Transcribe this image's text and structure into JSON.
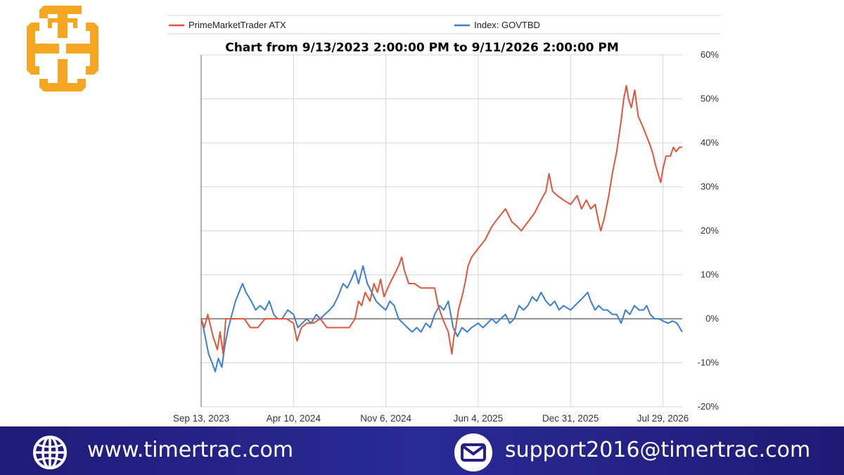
{
  "brand": {
    "logo_icon": "cross-frame-logo-icon",
    "logo_color": "#f5a623"
  },
  "colors": {
    "series_primary": "#e0563a",
    "series_index": "#3a7fd5",
    "grid": "#d6d6d6",
    "axis": "#666666",
    "footer_bg": "#23208a"
  },
  "chart_data": {
    "type": "line",
    "title": "Chart from 9/13/2023 2:00:00 PM to 9/11/2026 2:00:00 PM",
    "x_axis": {
      "type": "date",
      "range": [
        "2023-09-13",
        "2026-09-11"
      ],
      "tick_labels": [
        "Sep 13, 2023",
        "Apr 10, 2024",
        "Nov 6, 2024",
        "Jun 4, 2025",
        "Dec 31, 2025",
        "Jul 29, 2026"
      ],
      "tick_dates": [
        "2023-09-13",
        "2024-04-10",
        "2024-11-06",
        "2025-06-04",
        "2025-12-31",
        "2026-07-29"
      ]
    },
    "y_axis": {
      "range": [
        -20,
        60
      ],
      "unit": "%",
      "side": "right",
      "tick_labels": [
        "60%",
        "50%",
        "40%",
        "30%",
        "20%",
        "10%",
        "0%",
        "-10%",
        "-20%"
      ],
      "tick_values": [
        60,
        50,
        40,
        30,
        20,
        10,
        0,
        -10,
        -20
      ]
    },
    "grid": true,
    "legend": "top",
    "series": [
      {
        "name": "PrimeMarketTrader ATX",
        "color": "#e0563a",
        "points": [
          [
            "2023-09-13",
            0
          ],
          [
            "2023-09-20",
            -2
          ],
          [
            "2023-09-28",
            1
          ],
          [
            "2023-10-10",
            -4
          ],
          [
            "2023-10-20",
            -7
          ],
          [
            "2023-10-26",
            -3
          ],
          [
            "2023-11-02",
            -8
          ],
          [
            "2023-11-08",
            0
          ],
          [
            "2023-11-20",
            0
          ],
          [
            "2023-12-05",
            0
          ],
          [
            "2023-12-20",
            0
          ],
          [
            "2024-01-03",
            -2
          ],
          [
            "2024-01-20",
            -2
          ],
          [
            "2024-02-05",
            0
          ],
          [
            "2024-02-25",
            0
          ],
          [
            "2024-03-10",
            0
          ],
          [
            "2024-03-25",
            0
          ],
          [
            "2024-04-10",
            -1
          ],
          [
            "2024-04-18",
            -5
          ],
          [
            "2024-04-28",
            -2
          ],
          [
            "2024-05-10",
            -1
          ],
          [
            "2024-05-25",
            -1
          ],
          [
            "2024-06-10",
            0
          ],
          [
            "2024-06-25",
            -2
          ],
          [
            "2024-07-15",
            -2
          ],
          [
            "2024-08-01",
            -2
          ],
          [
            "2024-08-15",
            -2
          ],
          [
            "2024-08-28",
            0
          ],
          [
            "2024-09-05",
            4
          ],
          [
            "2024-09-12",
            3
          ],
          [
            "2024-09-20",
            6
          ],
          [
            "2024-10-01",
            4
          ],
          [
            "2024-10-10",
            8
          ],
          [
            "2024-10-18",
            6
          ],
          [
            "2024-10-25",
            9
          ],
          [
            "2024-11-02",
            5
          ],
          [
            "2024-11-06",
            6
          ],
          [
            "2024-11-15",
            8
          ],
          [
            "2024-11-25",
            10
          ],
          [
            "2024-12-05",
            12
          ],
          [
            "2024-12-12",
            14
          ],
          [
            "2024-12-18",
            11
          ],
          [
            "2024-12-28",
            8
          ],
          [
            "2025-01-10",
            8
          ],
          [
            "2025-01-25",
            7
          ],
          [
            "2025-02-10",
            7
          ],
          [
            "2025-02-25",
            7
          ],
          [
            "2025-03-05",
            3
          ],
          [
            "2025-03-15",
            0
          ],
          [
            "2025-03-28",
            -3
          ],
          [
            "2025-04-05",
            -8
          ],
          [
            "2025-04-10",
            -4
          ],
          [
            "2025-04-14",
            -2
          ],
          [
            "2025-04-20",
            2
          ],
          [
            "2025-04-28",
            5
          ],
          [
            "2025-05-05",
            8
          ],
          [
            "2025-05-12",
            12
          ],
          [
            "2025-05-20",
            14
          ],
          [
            "2025-06-04",
            16
          ],
          [
            "2025-06-20",
            18
          ],
          [
            "2025-07-05",
            21
          ],
          [
            "2025-07-20",
            23
          ],
          [
            "2025-08-05",
            25
          ],
          [
            "2025-08-20",
            22
          ],
          [
            "2025-09-01",
            21
          ],
          [
            "2025-09-10",
            20
          ],
          [
            "2025-09-25",
            22
          ],
          [
            "2025-10-10",
            24
          ],
          [
            "2025-10-25",
            27
          ],
          [
            "2025-11-05",
            29
          ],
          [
            "2025-11-12",
            33
          ],
          [
            "2025-11-20",
            29
          ],
          [
            "2025-12-01",
            28
          ],
          [
            "2025-12-15",
            27
          ],
          [
            "2025-12-31",
            26
          ],
          [
            "2026-01-15",
            28
          ],
          [
            "2026-01-25",
            25
          ],
          [
            "2026-02-05",
            27
          ],
          [
            "2026-02-15",
            25
          ],
          [
            "2026-02-25",
            26
          ],
          [
            "2026-03-05",
            22
          ],
          [
            "2026-03-10",
            20
          ],
          [
            "2026-03-18",
            23
          ],
          [
            "2026-03-28",
            28
          ],
          [
            "2026-04-05",
            33
          ],
          [
            "2026-04-15",
            38
          ],
          [
            "2026-04-25",
            45
          ],
          [
            "2026-05-01",
            50
          ],
          [
            "2026-05-07",
            53
          ],
          [
            "2026-05-12",
            50
          ],
          [
            "2026-05-18",
            48
          ],
          [
            "2026-05-26",
            52
          ],
          [
            "2026-06-03",
            46
          ],
          [
            "2026-06-12",
            44
          ],
          [
            "2026-06-20",
            42
          ],
          [
            "2026-06-28",
            40
          ],
          [
            "2026-07-05",
            38
          ],
          [
            "2026-07-12",
            35
          ],
          [
            "2026-07-18",
            33
          ],
          [
            "2026-07-24",
            31
          ],
          [
            "2026-07-29",
            34
          ],
          [
            "2026-08-05",
            37
          ],
          [
            "2026-08-15",
            37
          ],
          [
            "2026-08-22",
            39
          ],
          [
            "2026-08-28",
            38
          ],
          [
            "2026-09-05",
            39
          ],
          [
            "2026-09-11",
            39
          ]
        ]
      },
      {
        "name": "Index: GOVTBD",
        "color": "#3a7fd5",
        "points": [
          [
            "2023-09-13",
            0
          ],
          [
            "2023-09-18",
            -2
          ],
          [
            "2023-09-24",
            -5
          ],
          [
            "2023-09-30",
            -8
          ],
          [
            "2023-10-08",
            -10
          ],
          [
            "2023-10-15",
            -12
          ],
          [
            "2023-10-22",
            -9
          ],
          [
            "2023-10-30",
            -11
          ],
          [
            "2023-11-06",
            -6
          ],
          [
            "2023-11-14",
            -2
          ],
          [
            "2023-11-22",
            1
          ],
          [
            "2023-11-30",
            4
          ],
          [
            "2023-12-08",
            6
          ],
          [
            "2023-12-16",
            8
          ],
          [
            "2023-12-24",
            6
          ],
          [
            "2024-01-05",
            4
          ],
          [
            "2024-01-15",
            2
          ],
          [
            "2024-01-25",
            3
          ],
          [
            "2024-02-05",
            2
          ],
          [
            "2024-02-15",
            4
          ],
          [
            "2024-02-25",
            1
          ],
          [
            "2024-03-05",
            0
          ],
          [
            "2024-03-15",
            0
          ],
          [
            "2024-03-28",
            2
          ],
          [
            "2024-04-10",
            1
          ],
          [
            "2024-04-20",
            -2
          ],
          [
            "2024-04-30",
            -1
          ],
          [
            "2024-05-10",
            0
          ],
          [
            "2024-05-20",
            -1
          ],
          [
            "2024-06-01",
            1
          ],
          [
            "2024-06-10",
            0
          ],
          [
            "2024-06-20",
            1
          ],
          [
            "2024-07-01",
            2
          ],
          [
            "2024-07-10",
            3
          ],
          [
            "2024-07-20",
            5
          ],
          [
            "2024-08-01",
            8
          ],
          [
            "2024-08-10",
            7
          ],
          [
            "2024-08-20",
            9
          ],
          [
            "2024-08-28",
            11
          ],
          [
            "2024-09-05",
            8
          ],
          [
            "2024-09-15",
            12
          ],
          [
            "2024-09-25",
            8
          ],
          [
            "2024-10-05",
            6
          ],
          [
            "2024-10-15",
            4
          ],
          [
            "2024-10-25",
            3
          ],
          [
            "2024-11-06",
            2
          ],
          [
            "2024-11-15",
            4
          ],
          [
            "2024-11-25",
            3
          ],
          [
            "2024-12-05",
            0
          ],
          [
            "2024-12-15",
            -1
          ],
          [
            "2024-12-25",
            -2
          ],
          [
            "2025-01-05",
            -3
          ],
          [
            "2025-01-15",
            -2
          ],
          [
            "2025-01-25",
            -3
          ],
          [
            "2025-02-05",
            -1
          ],
          [
            "2025-02-15",
            -2
          ],
          [
            "2025-02-25",
            1
          ],
          [
            "2025-03-08",
            3
          ],
          [
            "2025-03-18",
            2
          ],
          [
            "2025-03-28",
            4
          ],
          [
            "2025-04-08",
            -2
          ],
          [
            "2025-04-18",
            -4
          ],
          [
            "2025-04-28",
            -2
          ],
          [
            "2025-05-10",
            -3
          ],
          [
            "2025-05-20",
            -2
          ],
          [
            "2025-06-04",
            -1
          ],
          [
            "2025-06-15",
            -2
          ],
          [
            "2025-06-25",
            -1
          ],
          [
            "2025-07-05",
            0
          ],
          [
            "2025-07-15",
            -1
          ],
          [
            "2025-07-25",
            0
          ],
          [
            "2025-08-05",
            1
          ],
          [
            "2025-08-15",
            -1
          ],
          [
            "2025-08-25",
            0
          ],
          [
            "2025-09-05",
            3
          ],
          [
            "2025-09-15",
            2
          ],
          [
            "2025-09-25",
            3
          ],
          [
            "2025-10-05",
            5
          ],
          [
            "2025-10-15",
            4
          ],
          [
            "2025-10-25",
            6
          ],
          [
            "2025-11-05",
            4
          ],
          [
            "2025-11-15",
            3
          ],
          [
            "2025-11-25",
            4
          ],
          [
            "2025-12-05",
            2
          ],
          [
            "2025-12-15",
            3
          ],
          [
            "2025-12-31",
            2
          ],
          [
            "2026-01-10",
            3
          ],
          [
            "2026-01-20",
            4
          ],
          [
            "2026-01-30",
            5
          ],
          [
            "2026-02-08",
            6
          ],
          [
            "2026-02-15",
            4
          ],
          [
            "2026-02-25",
            2
          ],
          [
            "2026-03-05",
            3
          ],
          [
            "2026-03-15",
            2
          ],
          [
            "2026-03-25",
            2
          ],
          [
            "2026-04-05",
            1
          ],
          [
            "2026-04-15",
            1
          ],
          [
            "2026-04-25",
            -1
          ],
          [
            "2026-05-05",
            2
          ],
          [
            "2026-05-15",
            1
          ],
          [
            "2026-05-25",
            3
          ],
          [
            "2026-06-05",
            2
          ],
          [
            "2026-06-15",
            2
          ],
          [
            "2026-06-22",
            3
          ],
          [
            "2026-06-30",
            1
          ],
          [
            "2026-07-10",
            0
          ],
          [
            "2026-07-20",
            0
          ],
          [
            "2026-07-29",
            -0.5
          ],
          [
            "2026-08-10",
            -1
          ],
          [
            "2026-08-20",
            -0.5
          ],
          [
            "2026-08-30",
            -1
          ],
          [
            "2026-09-05",
            -2
          ],
          [
            "2026-09-11",
            -3
          ]
        ]
      }
    ]
  },
  "footer": {
    "website_icon": "globe-icon",
    "website": "www.timertrac.com",
    "email_icon": "envelope-icon",
    "email": "support2016@timertrac.com"
  }
}
